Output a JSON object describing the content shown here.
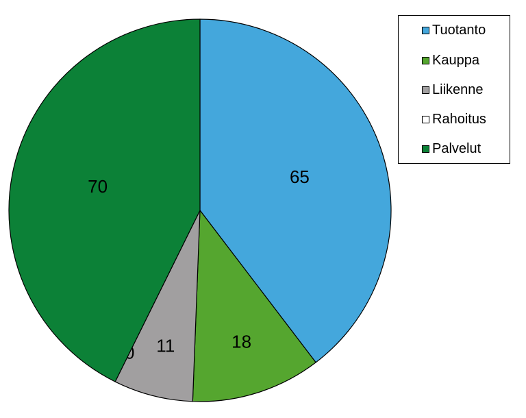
{
  "chart_data": {
    "type": "pie",
    "title": "",
    "categories": [
      "Tuotanto",
      "Kauppa",
      "Liikenne",
      "Rahoitus",
      "Palvelut"
    ],
    "values": [
      65,
      18,
      11,
      0,
      70
    ],
    "colors": [
      "#44a7dc",
      "#55a62f",
      "#a19fa0",
      "#ffffff",
      "#0c8137"
    ],
    "data_labels": [
      "65",
      "18",
      "11",
      "0",
      "70"
    ],
    "start_angle": "12 o'clock",
    "direction": "clockwise",
    "legend": {
      "position": "top-right",
      "items": [
        {
          "label": "Tuotanto",
          "color": "#44a7dc"
        },
        {
          "label": "Kauppa",
          "color": "#55a62f"
        },
        {
          "label": "Liikenne",
          "color": "#a19fa0"
        },
        {
          "label": "Rahoitus",
          "color": "#ffffff"
        },
        {
          "label": "Palvelut",
          "color": "#0c8137"
        }
      ]
    }
  }
}
